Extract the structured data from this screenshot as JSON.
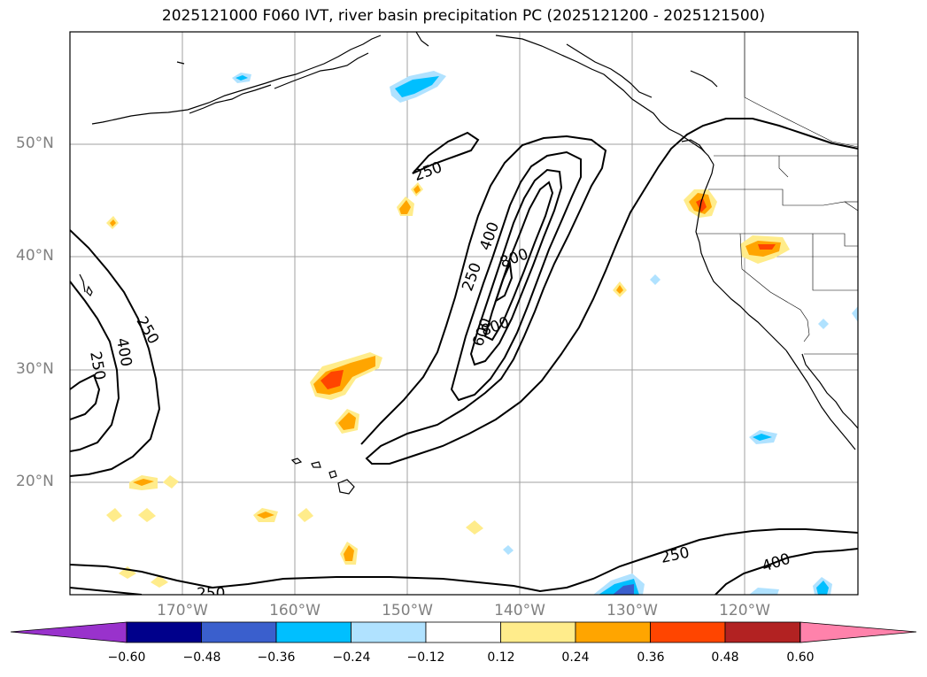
{
  "title": "2025121000 F060 IVT, river basin precipitation PC (2025121200 - 2025121500)",
  "lat_labels": [
    "50°N",
    "40°N",
    "30°N",
    "20°N"
  ],
  "lon_labels": [
    "170°W",
    "160°W",
    "150°W",
    "140°W",
    "130°W",
    "120°W"
  ],
  "contour_labels": [
    "250",
    "250",
    "400",
    "800",
    "600",
    "800",
    "250",
    "400",
    "250",
    "250",
    "400",
    "250"
  ],
  "colorbar": {
    "tick_labels": [
      "−0.60",
      "−0.48",
      "−0.36",
      "−0.24",
      "−0.12",
      "0.12",
      "0.24",
      "0.36",
      "0.48",
      "0.60"
    ],
    "colors": [
      "#9932cc",
      "#00008b",
      "#3a5fcd",
      "#00bfff",
      "#b0e2ff",
      "#ffffff",
      "#ffec8b",
      "#ffa500",
      "#ff4500",
      "#b22222",
      "#ff82ab"
    ]
  },
  "ivt_contour_levels": [
    250,
    400,
    600,
    800
  ],
  "colors": {
    "gridline": "#a0a0a0",
    "coast": "#000000",
    "axis_text": "#808080"
  }
}
